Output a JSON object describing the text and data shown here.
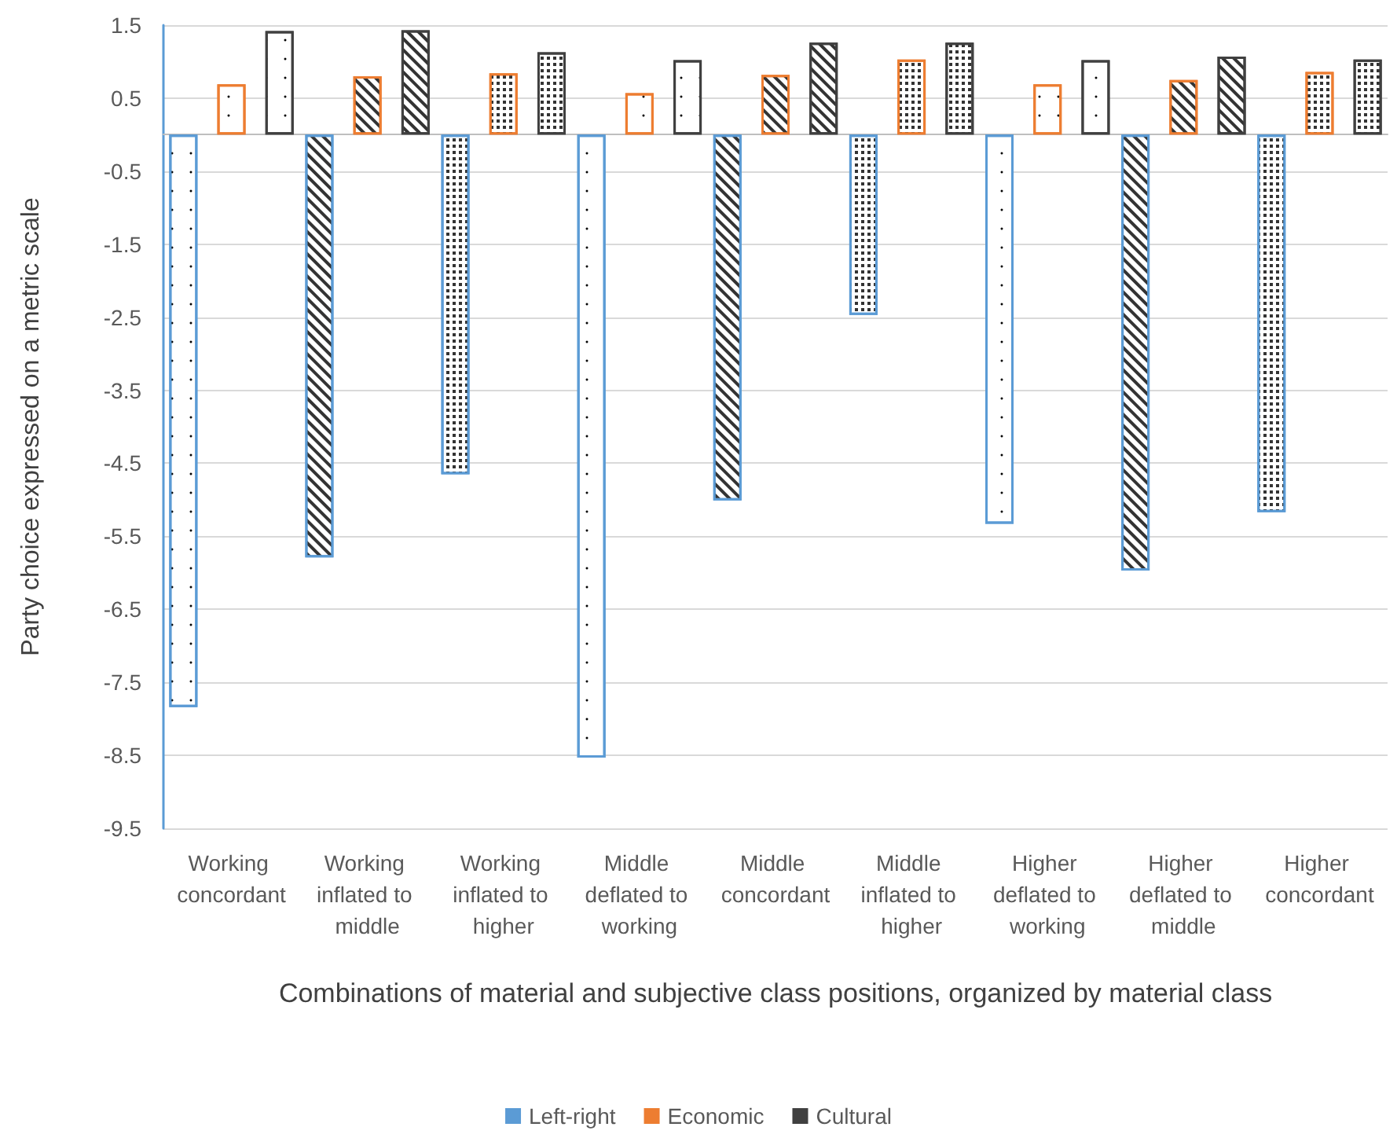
{
  "chart_data": {
    "type": "bar",
    "xlabel": "Combinations of material and subjective class positions, organized by material class",
    "ylabel": "Party choice expressed on a metric scale",
    "categories": [
      "Working concordant",
      "Working inflated to middle",
      "Working inflated to higher",
      "Middle deflated to working",
      "Middle concordant",
      "Middle inflated to higher",
      "Higher deflated to working",
      "Higher deflated to middle",
      "Higher concordant"
    ],
    "series": [
      {
        "name": "Left-right",
        "color": "#5b9bd5",
        "values": [
          -7.84,
          -5.79,
          -4.65,
          -8.53,
          -5.01,
          -2.47,
          -5.33,
          -5.97,
          -5.17
        ]
      },
      {
        "name": "Economic",
        "color": "#ed7d31",
        "values": [
          0.69,
          0.8,
          0.84,
          0.57,
          0.82,
          1.03,
          0.69,
          0.75,
          0.86
        ]
      },
      {
        "name": "Cultural",
        "color": "#404040",
        "values": [
          1.42,
          1.43,
          1.13,
          1.02,
          1.26,
          1.26,
          1.02,
          1.07,
          1.03
        ]
      }
    ],
    "ylim": [
      -9.5,
      1.5
    ],
    "yticks": [
      1.5,
      0.5,
      -0.5,
      -1.5,
      -2.5,
      -3.5,
      -4.5,
      -5.5,
      -6.5,
      -7.5,
      -8.5,
      -9.5
    ],
    "grid": "y",
    "legend": "bottom"
  }
}
